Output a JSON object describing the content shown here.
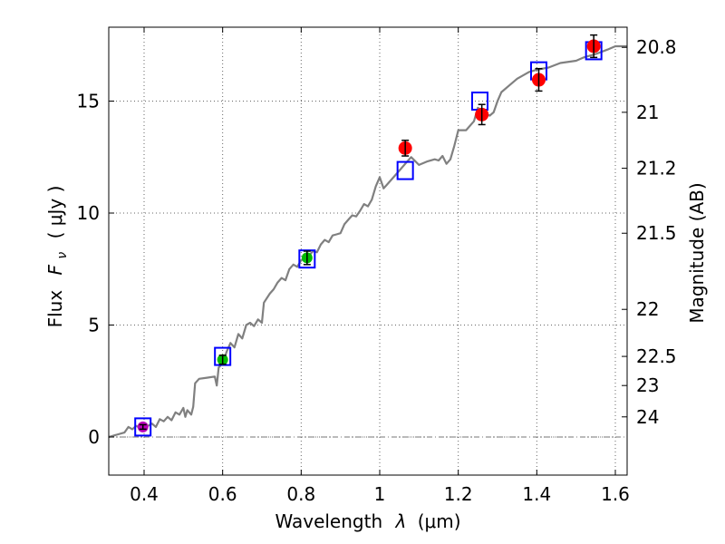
{
  "chart_data": {
    "type": "scatter",
    "xlabel_text": "Wavelength",
    "xlabel_symbol": "λ",
    "xlabel_unit": "(μm)",
    "ylabel_text": "Flux",
    "ylabel_symbol": "F",
    "ylabel_subscript": "ν",
    "ylabel_unit": "( μJy )",
    "y2label": "Magnitude (AB)",
    "xlim": [
      0.31,
      1.63
    ],
    "ylim": [
      -1.7,
      18.3
    ],
    "grid": true,
    "x_ticks": [
      0.4,
      0.6,
      0.8,
      1.0,
      1.2,
      1.4,
      1.6
    ],
    "x_tick_labels": [
      "0.4",
      "0.6",
      "0.8",
      "1",
      "1.2",
      "1.4",
      "1.6"
    ],
    "y_ticks": [
      0,
      5,
      10,
      15
    ],
    "y_tick_labels": [
      "0",
      "5",
      "10",
      "15"
    ],
    "y2_ticks": [
      {
        "label": "20.8",
        "flux": 17.4
      },
      {
        "label": "21",
        "flux": 14.5
      },
      {
        "label": "21.2",
        "flux": 12.0
      },
      {
        "label": "21.5",
        "flux": 9.1
      },
      {
        "label": "22",
        "flux": 5.7
      },
      {
        "label": "22.5",
        "flux": 3.6
      },
      {
        "label": "23",
        "flux": 2.3
      },
      {
        "label": "24",
        "flux": 0.9
      }
    ],
    "colors": {
      "sed": "#808080",
      "model_box": "#0000ff",
      "observed_nir": "#ff0000",
      "observed_optical": "#00bb00",
      "observed_uv": "#bb00bb",
      "grid": "#666666"
    },
    "sed_curve": {
      "name": "",
      "points": [
        [
          0.31,
          0.0
        ],
        [
          0.33,
          0.1
        ],
        [
          0.35,
          0.2
        ],
        [
          0.36,
          0.45
        ],
        [
          0.37,
          0.35
        ],
        [
          0.38,
          0.5
        ],
        [
          0.39,
          0.4
        ],
        [
          0.4,
          0.55
        ],
        [
          0.41,
          0.5
        ],
        [
          0.42,
          0.6
        ],
        [
          0.43,
          0.45
        ],
        [
          0.44,
          0.8
        ],
        [
          0.45,
          0.7
        ],
        [
          0.46,
          0.9
        ],
        [
          0.47,
          0.75
        ],
        [
          0.48,
          1.1
        ],
        [
          0.49,
          1.0
        ],
        [
          0.5,
          1.3
        ],
        [
          0.505,
          0.9
        ],
        [
          0.51,
          1.2
        ],
        [
          0.52,
          1.0
        ],
        [
          0.525,
          1.35
        ],
        [
          0.53,
          2.4
        ],
        [
          0.54,
          2.6
        ],
        [
          0.56,
          2.65
        ],
        [
          0.58,
          2.7
        ],
        [
          0.585,
          2.3
        ],
        [
          0.59,
          3.1
        ],
        [
          0.6,
          3.3
        ],
        [
          0.61,
          3.8
        ],
        [
          0.62,
          4.2
        ],
        [
          0.63,
          4.0
        ],
        [
          0.64,
          4.6
        ],
        [
          0.65,
          4.4
        ],
        [
          0.66,
          5.0
        ],
        [
          0.67,
          5.1
        ],
        [
          0.68,
          4.95
        ],
        [
          0.69,
          5.25
        ],
        [
          0.7,
          5.1
        ],
        [
          0.705,
          6.0
        ],
        [
          0.72,
          6.4
        ],
        [
          0.73,
          6.6
        ],
        [
          0.74,
          6.9
        ],
        [
          0.75,
          7.1
        ],
        [
          0.76,
          7.0
        ],
        [
          0.77,
          7.5
        ],
        [
          0.78,
          7.7
        ],
        [
          0.79,
          7.6
        ],
        [
          0.8,
          7.9
        ],
        [
          0.81,
          7.95
        ],
        [
          0.82,
          8.1
        ],
        [
          0.83,
          8.3
        ],
        [
          0.84,
          8.25
        ],
        [
          0.85,
          8.6
        ],
        [
          0.86,
          8.8
        ],
        [
          0.87,
          8.7
        ],
        [
          0.88,
          9.0
        ],
        [
          0.89,
          9.05
        ],
        [
          0.9,
          9.1
        ],
        [
          0.91,
          9.5
        ],
        [
          0.92,
          9.7
        ],
        [
          0.93,
          9.9
        ],
        [
          0.94,
          9.85
        ],
        [
          0.95,
          10.1
        ],
        [
          0.96,
          10.4
        ],
        [
          0.97,
          10.3
        ],
        [
          0.98,
          10.6
        ],
        [
          0.99,
          11.2
        ],
        [
          1.0,
          11.6
        ],
        [
          1.01,
          11.1
        ],
        [
          1.02,
          11.3
        ],
        [
          1.03,
          11.5
        ],
        [
          1.05,
          11.9
        ],
        [
          1.07,
          12.3
        ],
        [
          1.08,
          12.5
        ],
        [
          1.1,
          12.15
        ],
        [
          1.12,
          12.3
        ],
        [
          1.14,
          12.4
        ],
        [
          1.15,
          12.35
        ],
        [
          1.16,
          12.55
        ],
        [
          1.17,
          12.2
        ],
        [
          1.18,
          12.4
        ],
        [
          1.19,
          13.0
        ],
        [
          1.2,
          13.7
        ],
        [
          1.22,
          13.7
        ],
        [
          1.24,
          14.1
        ],
        [
          1.25,
          14.7
        ],
        [
          1.265,
          14.5
        ],
        [
          1.28,
          14.35
        ],
        [
          1.29,
          14.5
        ],
        [
          1.3,
          15.0
        ],
        [
          1.31,
          15.4
        ],
        [
          1.33,
          15.7
        ],
        [
          1.35,
          16.0
        ],
        [
          1.38,
          16.3
        ],
        [
          1.4,
          16.4
        ],
        [
          1.43,
          16.5
        ],
        [
          1.46,
          16.7
        ],
        [
          1.5,
          16.8
        ],
        [
          1.52,
          16.95
        ],
        [
          1.55,
          17.1
        ],
        [
          1.58,
          17.3
        ],
        [
          1.6,
          17.45
        ],
        [
          1.63,
          17.45
        ]
      ]
    },
    "series": [
      {
        "name": "",
        "style": "model-box",
        "x": [
          0.397,
          0.6,
          0.815,
          1.065,
          1.255,
          1.405,
          1.545
        ],
        "y": [
          0.45,
          3.6,
          7.95,
          11.9,
          15.0,
          16.35,
          17.25
        ]
      },
      {
        "name": "",
        "style": "observed-nir",
        "x": [
          1.065,
          1.26,
          1.405,
          1.545
        ],
        "y": [
          12.9,
          14.4,
          15.95,
          17.45
        ],
        "yerr": [
          0.35,
          0.45,
          0.5,
          0.5
        ]
      },
      {
        "name": "",
        "style": "observed-optical",
        "x": [
          0.6,
          0.815
        ],
        "y": [
          3.45,
          8.0
        ],
        "yerr": [
          0.2,
          0.3
        ]
      },
      {
        "name": "",
        "style": "observed-uv",
        "x": [
          0.397
        ],
        "y": [
          0.45
        ],
        "yerr": [
          0.1
        ]
      }
    ]
  }
}
